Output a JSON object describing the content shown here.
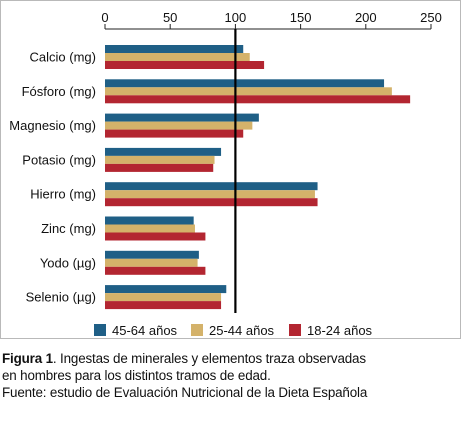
{
  "chart_data": {
    "type": "bar",
    "orientation": "horizontal",
    "categories": [
      "Calcio (mg)",
      "Fósforo (mg)",
      "Magnesio (mg)",
      "Potasio (mg)",
      "Hierro (mg)",
      "Zinc (mg)",
      "Yodo (µg)",
      "Selenio (µg)"
    ],
    "series": [
      {
        "name": "45-64 años",
        "color": "#1f5f86",
        "values": [
          106,
          214,
          118,
          89,
          163,
          68,
          72,
          93
        ]
      },
      {
        "name": "25-44 años",
        "color": "#d4b26a",
        "values": [
          111,
          220,
          113,
          84,
          161,
          69,
          71,
          89
        ]
      },
      {
        "name": "18-24 años",
        "color": "#b32631",
        "values": [
          122,
          234,
          106,
          83,
          163,
          77,
          77,
          89
        ]
      }
    ],
    "xlim": [
      0,
      250
    ],
    "xticks": [
      "0",
      "50",
      "100",
      "150",
      "200",
      "250"
    ],
    "reference_line": 100,
    "legend_position": "bottom",
    "grid": false
  },
  "caption": {
    "label": "Figura 1",
    "line1": ". Ingestas de minerales y elementos traza observadas",
    "line2": "en hombres para los distintos tramos de edad.",
    "line3": "Fuente: estudio de Evaluación Nutricional de la Dieta Española"
  }
}
